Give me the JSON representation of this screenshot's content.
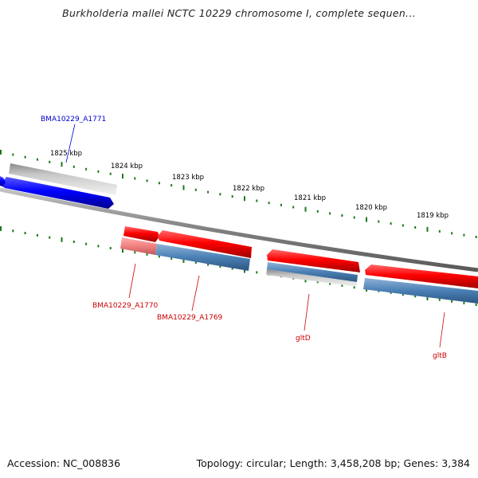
{
  "title": "Burkholderia mallei NCTC 10229 chromosome I, complete sequen...",
  "footer": {
    "accession": "Accession: NC_008836",
    "summary": "Topology: circular; Length: 3,458,208 bp; Genes: 3,384"
  },
  "ticks": [
    "1825 kbp",
    "1824 kbp",
    "1823 kbp",
    "1822 kbp",
    "1821 kbp",
    "1820 kbp",
    "1819 kbp"
  ],
  "genes": [
    {
      "label": "BMA10229_A1771",
      "color": "#0000cc"
    },
    {
      "label": "BMA10229_A1770",
      "color": "#cc0000"
    },
    {
      "label": "BMA10229_A1769",
      "color": "#cc0000"
    },
    {
      "label": "gltD",
      "color": "#cc0000"
    },
    {
      "label": "gltB",
      "color": "#cc0000"
    }
  ],
  "colors": {
    "backbone": "#808080",
    "forward_feature": "#ff0000",
    "reverse_feature": "#0000ff",
    "cds": "#4a7fb5",
    "gene_hit": "#b8b8b8",
    "tick": "#1a7a1a"
  }
}
